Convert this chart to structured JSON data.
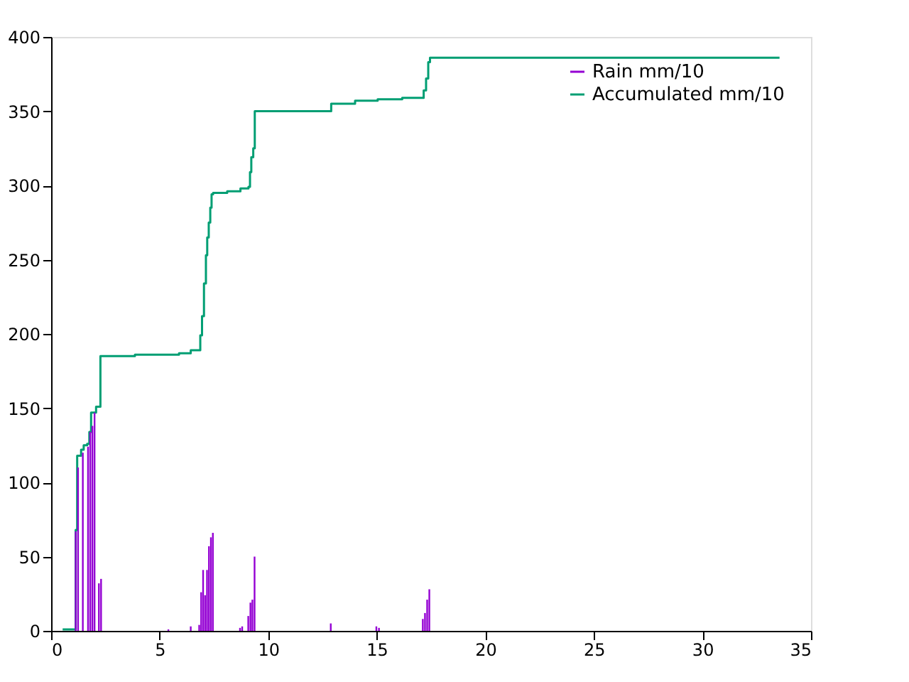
{
  "chart_data": {
    "type": "step",
    "xlim": [
      0,
      35
    ],
    "xticks": [
      0,
      5,
      10,
      15,
      20,
      25,
      30,
      35
    ],
    "ylim": [
      0,
      400
    ],
    "yticks": [
      0,
      50,
      100,
      150,
      200,
      250,
      300,
      350,
      400
    ],
    "legend": "top right",
    "grid": false,
    "series": [
      {
        "name": "Rain mm/10",
        "type": "bar",
        "color": "#9400d3",
        "x": [
          1.13,
          1.24,
          1.46,
          1.7,
          1.8,
          1.9,
          2.0,
          2.2,
          2.3,
          5.4,
          6.43,
          6.82,
          6.91,
          7.0,
          7.09,
          7.18,
          7.27,
          7.36,
          7.45,
          8.7,
          8.8,
          9.08,
          9.18,
          9.27,
          9.37,
          12.88,
          14.98,
          15.1,
          17.12,
          17.22,
          17.32,
          17.42
        ],
        "values": [
          67,
          110,
          120,
          124,
          134,
          138,
          147,
          32,
          35,
          1,
          3,
          4,
          26,
          41,
          24,
          41,
          57,
          63,
          66,
          2,
          3,
          10,
          19,
          21,
          50,
          5,
          3,
          2,
          8,
          12,
          21,
          28
        ]
      },
      {
        "name": "Accumulated mm/10",
        "color": "#009e73",
        "x": [
          0.53,
          1.13,
          1.2,
          1.38,
          1.5,
          1.66,
          1.76,
          1.84,
          2.07,
          2.27,
          3.86,
          5.89,
          6.43,
          6.87,
          6.95,
          7.04,
          7.13,
          7.19,
          7.26,
          7.33,
          7.39,
          7.46,
          8.11,
          8.72,
          9.09,
          9.16,
          9.22,
          9.31,
          9.38,
          12.9,
          14.0,
          15.04,
          16.17,
          17.16,
          17.27,
          17.37,
          17.45,
          33.55
        ],
        "values": [
          1,
          68,
          118,
          122,
          125,
          126,
          134,
          147,
          151,
          185,
          186,
          187,
          189,
          199,
          212,
          234,
          253,
          265,
          275,
          285,
          294,
          295,
          296,
          298,
          299,
          309,
          319,
          325,
          350,
          355,
          357,
          358,
          359,
          364,
          372,
          383,
          386,
          386
        ]
      }
    ]
  }
}
